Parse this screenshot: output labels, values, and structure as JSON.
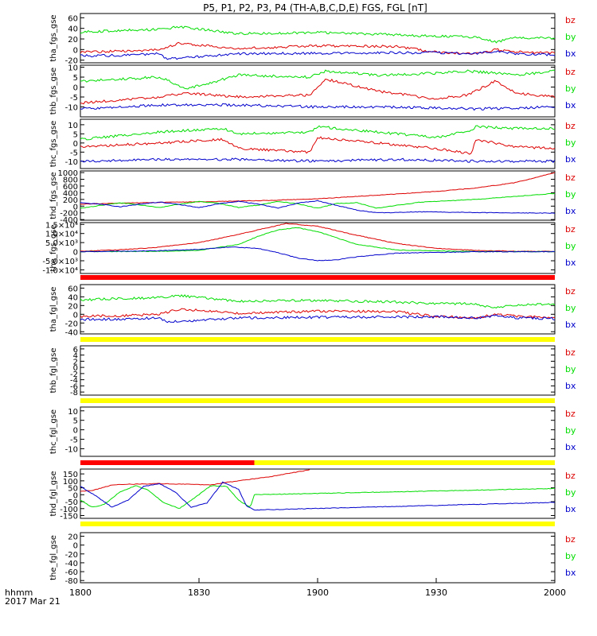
{
  "title": "P5, P1, P2, P3, P4 (TH-A,B,C,D,E) FGS, FGL [nT]",
  "time_label": "hhmm",
  "date_label": "2017 Mar 21",
  "x_ticks": [
    "1800",
    "1830",
    "1900",
    "1930",
    "2000"
  ],
  "colors": {
    "bz": "#dd0000",
    "by": "#00dd00",
    "bx": "#0000cc",
    "red_bar": "#ff0000",
    "yellow_bar": "#ffff00",
    "axis": "#000000"
  },
  "legend": [
    "bz",
    "by",
    "bx"
  ],
  "chart_data": {
    "type": "line",
    "x_range": [
      0,
      120
    ],
    "x_unit": "minutes after 18:00 UT",
    "panels": [
      {
        "name": "tha_fgs_gse",
        "ylabel": "tha_fgs_gse",
        "ylim": [
          -25,
          68
        ],
        "yticks": [
          -20,
          0,
          20,
          40,
          60
        ],
        "ytick_labels": [
          "-20",
          "0",
          "20",
          "40",
          "60"
        ],
        "series": [
          {
            "name": "bz",
            "x": [
              0,
              10,
              20,
              25,
              40,
              60,
              80,
              90,
              100,
              105,
              110,
              120
            ],
            "y": [
              -5,
              -3,
              0,
              12,
              2,
              7,
              6,
              -5,
              -8,
              0,
              -4,
              -7
            ]
          },
          {
            "name": "by",
            "x": [
              0,
              10,
              20,
              25,
              40,
              60,
              80,
              90,
              100,
              105,
              110,
              120
            ],
            "y": [
              33,
              36,
              38,
              43,
              30,
              32,
              28,
              25,
              24,
              14,
              22,
              22
            ]
          },
          {
            "name": "bx",
            "x": [
              0,
              10,
              20,
              22,
              40,
              60,
              80,
              90,
              100,
              105,
              110,
              120
            ],
            "y": [
              -12,
              -11,
              -8,
              -18,
              -8,
              -7,
              -6,
              -6,
              -8,
              -3,
              -8,
              -10
            ]
          }
        ]
      },
      {
        "name": "thb_fgs_gse",
        "ylabel": "thb_fgs_gse",
        "ylim": [
          -15,
          11
        ],
        "yticks": [
          -10,
          -5,
          0,
          5,
          10
        ],
        "ytick_labels": [
          "-10",
          "-5",
          "0",
          "5",
          "10"
        ],
        "series": [
          {
            "name": "bz",
            "x": [
              0,
              20,
              27,
              40,
              58,
              62,
              75,
              90,
              98,
              105,
              110,
              120
            ],
            "y": [
              -8,
              -5,
              -3,
              -5,
              -4,
              4,
              -2,
              -6,
              -4,
              3,
              -3,
              -5
            ]
          },
          {
            "name": "by",
            "x": [
              0,
              20,
              27,
              40,
              58,
              62,
              75,
              90,
              98,
              105,
              110,
              120
            ],
            "y": [
              3,
              5,
              -1,
              6,
              5,
              8,
              6,
              7,
              8,
              7,
              6,
              8
            ]
          },
          {
            "name": "bx",
            "x": [
              0,
              20,
              40,
              60,
              80,
              100,
              120
            ],
            "y": [
              -11,
              -9,
              -9,
              -10,
              -10,
              -11,
              -10
            ]
          }
        ]
      },
      {
        "name": "thc_fgs_gse",
        "ylabel": "thc_fgs_gse",
        "ylim": [
          -14,
          13
        ],
        "yticks": [
          -10,
          -5,
          0,
          5,
          10
        ],
        "ytick_labels": [
          "-10",
          "-5",
          "0",
          "5",
          "10"
        ],
        "series": [
          {
            "name": "bz",
            "x": [
              0,
              20,
              36,
              40,
              58,
              60,
              75,
              90,
              99,
              100,
              110,
              120
            ],
            "y": [
              -2,
              0,
              2,
              -3,
              -5,
              3,
              0,
              -3,
              -6,
              2,
              -2,
              -3
            ]
          },
          {
            "name": "by",
            "x": [
              0,
              20,
              36,
              40,
              58,
              60,
              75,
              90,
              99,
              100,
              110,
              120
            ],
            "y": [
              2,
              6,
              8,
              5,
              6,
              9,
              6,
              3,
              7,
              9,
              8,
              8
            ]
          },
          {
            "name": "bx",
            "x": [
              0,
              20,
              40,
              60,
              80,
              100,
              120
            ],
            "y": [
              -10,
              -9,
              -9,
              -10,
              -9,
              -10,
              -10
            ]
          }
        ]
      },
      {
        "name": "thd_fgs_gse",
        "ylabel": "thd_fgs_gse",
        "ylim": [
          -420,
          1050
        ],
        "yticks": [
          -400,
          -200,
          0,
          200,
          400,
          600,
          800,
          1000
        ],
        "ytick_labels": [
          "-400",
          "-200",
          "0",
          "200",
          "400",
          "600",
          "800",
          "1000"
        ],
        "series": [
          {
            "name": "bz",
            "x": [
              0,
              10,
              20,
              30,
              40,
              50,
              60,
              70,
              80,
              90,
              100,
              110,
              120
            ],
            "y": [
              60,
              90,
              110,
              130,
              150,
              180,
              220,
              290,
              360,
              440,
              540,
              700,
              1000
            ]
          },
          {
            "name": "by",
            "x": [
              0,
              5,
              10,
              15,
              20,
              25,
              30,
              35,
              40,
              45,
              50,
              55,
              60,
              65,
              70,
              75,
              86,
              100,
              120
            ],
            "y": [
              -60,
              20,
              100,
              40,
              -40,
              60,
              140,
              80,
              -40,
              30,
              140,
              70,
              -60,
              80,
              100,
              -60,
              120,
              200,
              380
            ]
          },
          {
            "name": "bx",
            "x": [
              0,
              5,
              10,
              15,
              20,
              25,
              30,
              35,
              40,
              45,
              50,
              55,
              60,
              65,
              70,
              75,
              86,
              100,
              120
            ],
            "y": [
              100,
              60,
              -20,
              60,
              120,
              50,
              -40,
              70,
              140,
              60,
              -60,
              90,
              160,
              20,
              -120,
              -200,
              -170,
              -190,
              -210
            ]
          }
        ]
      },
      {
        "name": "the_fgs_gse",
        "ylabel": "the_fgs_gse",
        "ylim": [
          -12000,
          16000
        ],
        "yticks": [
          -10000,
          -5000,
          0,
          5000,
          10000,
          15000
        ],
        "ytick_labels": [
          "-1.0×10⁴",
          "-5.0×10³",
          "0",
          "5.0×10³",
          "1.0×10⁴",
          "1.5×10⁴"
        ],
        "series": [
          {
            "name": "bz",
            "x": [
              0,
              10,
              20,
              30,
              40,
              48,
              52,
              60,
              70,
              80,
              90,
              100,
              110,
              120
            ],
            "y": [
              300,
              1000,
              2500,
              5000,
              9500,
              13500,
              15500,
              14000,
              9000,
              4500,
              1800,
              700,
              250,
              100
            ]
          },
          {
            "name": "by",
            "x": [
              0,
              20,
              30,
              40,
              45,
              50,
              55,
              60,
              70,
              80,
              100,
              120
            ],
            "y": [
              0,
              200,
              700,
              4000,
              8500,
              12000,
              13200,
              11000,
              4000,
              900,
              50,
              0
            ]
          },
          {
            "name": "bx",
            "x": [
              0,
              20,
              30,
              38,
              45,
              50,
              55,
              60,
              65,
              70,
              80,
              100,
              120
            ],
            "y": [
              0,
              500,
              1300,
              2600,
              1800,
              -600,
              -3500,
              -4900,
              -4400,
              -2800,
              -800,
              -50,
              0
            ]
          }
        ]
      },
      {
        "name": "tha_fgl_gse",
        "ylabel": "tha_fgl_gse",
        "ylim": [
          -45,
          68
        ],
        "yticks": [
          -40,
          -20,
          0,
          20,
          40,
          60
        ],
        "ytick_labels": [
          "-40",
          "-20",
          "0",
          "20",
          "40",
          "60"
        ],
        "series": [
          {
            "name": "bz",
            "x": [
              0,
              10,
              20,
              25,
              40,
              60,
              80,
              90,
              100,
              105,
              110,
              120
            ],
            "y": [
              -5,
              -3,
              0,
              12,
              2,
              7,
              6,
              -5,
              -8,
              0,
              -4,
              -7
            ]
          },
          {
            "name": "by",
            "x": [
              0,
              10,
              20,
              25,
              40,
              60,
              80,
              90,
              100,
              105,
              110,
              120
            ],
            "y": [
              33,
              36,
              38,
              43,
              30,
              32,
              28,
              25,
              24,
              14,
              22,
              22
            ]
          },
          {
            "name": "bx",
            "x": [
              0,
              10,
              20,
              22,
              40,
              60,
              80,
              90,
              100,
              105,
              110,
              120
            ],
            "y": [
              -12,
              -11,
              -8,
              -18,
              -8,
              -7,
              -6,
              -6,
              -8,
              -3,
              -8,
              -10
            ]
          }
        ]
      },
      {
        "name": "thb_fgl_gse",
        "ylabel": "thb_fgl_gse",
        "ylim": [
          -9,
          7
        ],
        "yticks": [
          -8,
          -6,
          -4,
          -2,
          0,
          2,
          4,
          6
        ],
        "ytick_labels": [
          "-8",
          "-6",
          "-4",
          "-2",
          "0",
          "2",
          "4",
          "6"
        ],
        "series": []
      },
      {
        "name": "thc_fgl_gse",
        "ylabel": "thc_fgl_gse",
        "ylim": [
          -14,
          12
        ],
        "yticks": [
          -10,
          -5,
          0,
          5,
          10
        ],
        "ytick_labels": [
          "-10",
          "-5",
          "0",
          "5",
          "10"
        ],
        "series": []
      },
      {
        "name": "thd_fgl_gse",
        "ylabel": "thd_fgl_gse",
        "ylim": [
          -170,
          185
        ],
        "yticks": [
          -150,
          -100,
          -50,
          0,
          50,
          100,
          150
        ],
        "ytick_labels": [
          "-150",
          "-100",
          "-50",
          "0",
          "50",
          "100",
          "150"
        ],
        "series": [
          {
            "name": "bz",
            "x": [
              0,
              3,
              8,
              12,
              20,
              28,
              33,
              36,
              40,
              44,
              48,
              58
            ],
            "y": [
              25,
              30,
              70,
              75,
              80,
              75,
              70,
              85,
              100,
              115,
              130,
              180
            ]
          },
          {
            "name": "by",
            "x": [
              0,
              3,
              6,
              10,
              14,
              17,
              21,
              25,
              29,
              33,
              37,
              40,
              43,
              44,
              120
            ],
            "y": [
              -40,
              -90,
              -70,
              20,
              65,
              35,
              -55,
              -100,
              -20,
              65,
              60,
              -40,
              -90,
              0,
              45
            ]
          },
          {
            "name": "bx",
            "x": [
              0,
              4,
              8,
              12,
              16,
              20,
              24,
              28,
              32,
              36,
              40,
              42,
              44,
              120
            ],
            "y": [
              60,
              -10,
              -90,
              -40,
              60,
              80,
              20,
              -90,
              -60,
              90,
              40,
              -80,
              -110,
              -55
            ]
          }
        ]
      },
      {
        "name": "the_fgl_gse",
        "ylabel": "the_fgl_gse",
        "ylim": [
          -85,
          28
        ],
        "yticks": [
          -80,
          -60,
          -40,
          -20,
          0,
          20
        ],
        "ytick_labels": [
          "-80",
          "-60",
          "-40",
          "-20",
          "0",
          "20"
        ],
        "series": []
      }
    ],
    "flag_bars": [
      {
        "name": "bar-the-fgs",
        "segments": [
          {
            "from": 0,
            "to": 120,
            "color": "red"
          }
        ]
      },
      {
        "name": "bar-tha-fgl",
        "segments": [
          {
            "from": 0,
            "to": 120,
            "color": "yellow"
          }
        ]
      },
      {
        "name": "bar-thb-fgl",
        "segments": [
          {
            "from": 0,
            "to": 120,
            "color": "yellow"
          }
        ]
      },
      {
        "name": "bar-thc-fgl",
        "segments": [
          {
            "from": 0,
            "to": 44,
            "color": "red"
          },
          {
            "from": 44,
            "to": 120,
            "color": "yellow"
          }
        ]
      },
      {
        "name": "bar-thd-fgl",
        "segments": [
          {
            "from": 0,
            "to": 120,
            "color": "yellow"
          }
        ]
      }
    ]
  }
}
